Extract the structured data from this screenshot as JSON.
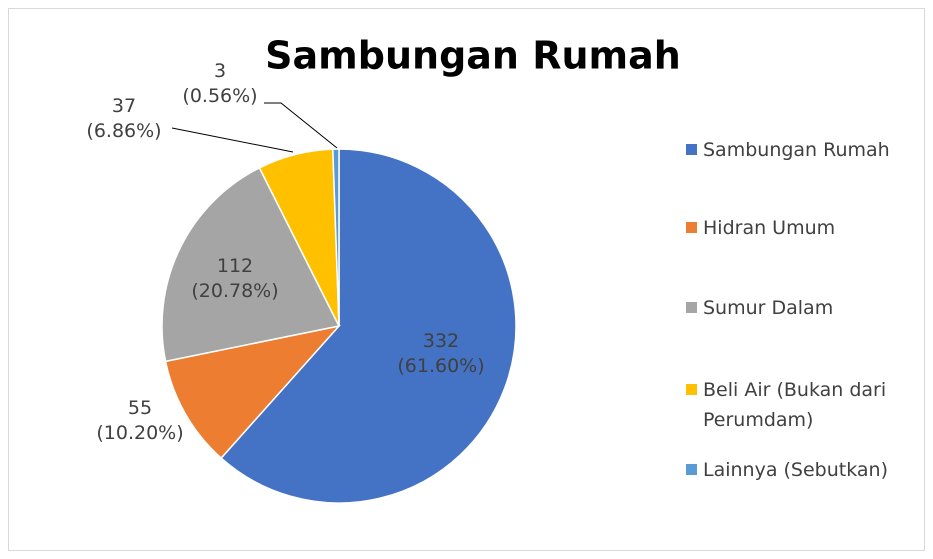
{
  "chart_data": {
    "type": "pie",
    "title": "Sambungan Rumah",
    "categories": [
      "Sambungan Rumah",
      "Hidran Umum",
      "Sumur Dalam",
      "Beli Air (Bukan dari Perumdam)",
      "Lainnya (Sebutkan)"
    ],
    "values": [
      332,
      55,
      112,
      37,
      3
    ],
    "value_labels": [
      "332 (61.60%)",
      "55 (10.20%)",
      "112 (20.78%)",
      "37 (6.86%)",
      "3 (0.56%)"
    ],
    "colors": [
      "#4472c4",
      "#ed7d31",
      "#a5a5a5",
      "#ffc000",
      "#5b9bd5"
    ],
    "legend": "right"
  }
}
